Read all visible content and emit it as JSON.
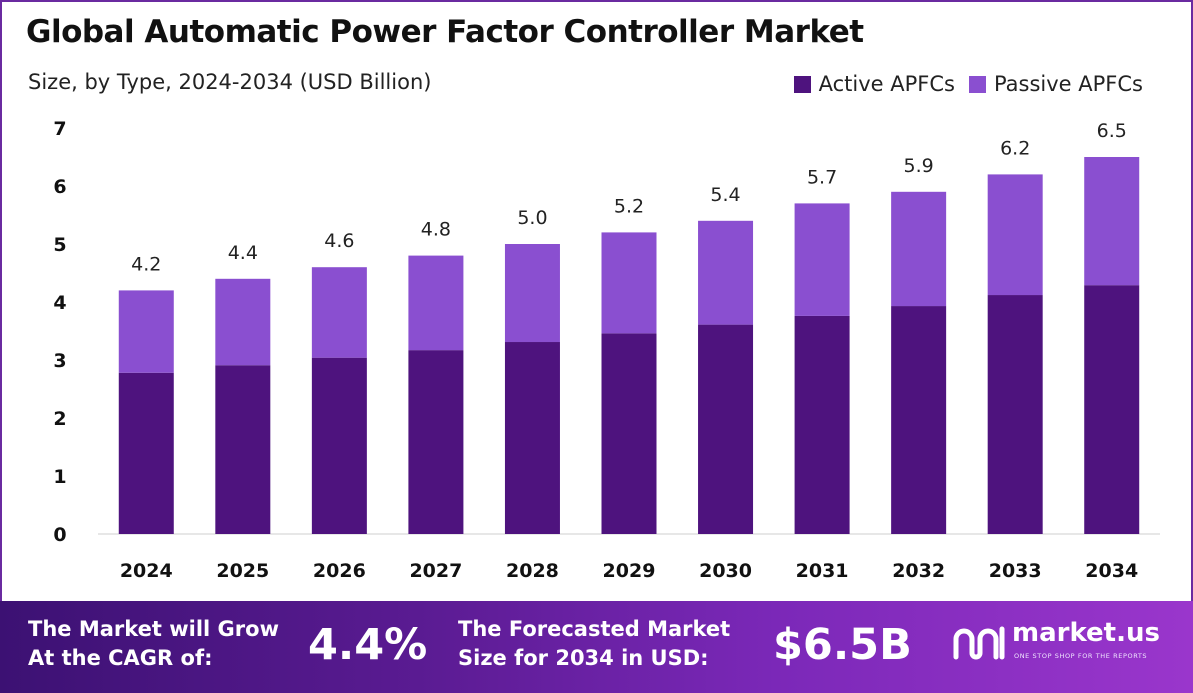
{
  "chart_data": {
    "type": "bar",
    "stacked": true,
    "title": "Global Automatic Power Factor Controller Market",
    "subtitle": "Size, by Type, 2024-2034 (USD Billion)",
    "categories": [
      "2024",
      "2025",
      "2026",
      "2027",
      "2028",
      "2029",
      "2030",
      "2031",
      "2032",
      "2033",
      "2034"
    ],
    "series": [
      {
        "name": "Active APFCs",
        "color": "#4e137e",
        "values": [
          2.78,
          2.91,
          3.04,
          3.17,
          3.31,
          3.46,
          3.61,
          3.76,
          3.93,
          4.12,
          4.29
        ]
      },
      {
        "name": "Passive APFCs",
        "color": "#8a4fd0",
        "values": [
          1.42,
          1.49,
          1.56,
          1.63,
          1.69,
          1.74,
          1.79,
          1.94,
          1.97,
          2.08,
          2.21
        ]
      }
    ],
    "totals": [
      4.2,
      4.4,
      4.6,
      4.8,
      5.0,
      5.2,
      5.4,
      5.7,
      5.9,
      6.2,
      6.5
    ],
    "total_labels": [
      "4.2",
      "4.4",
      "4.6",
      "4.8",
      "5.0",
      "5.2",
      "5.4",
      "5.7",
      "5.9",
      "6.2",
      "6.5"
    ],
    "ylim": [
      0,
      7
    ],
    "yticks": [
      "0",
      "1",
      "2",
      "3",
      "4",
      "5",
      "6",
      "7"
    ],
    "grid": false,
    "legend_position": "top-right"
  },
  "footer": {
    "cagr_line1": "The Market will Grow",
    "cagr_line2": "At the CAGR of:",
    "cagr_value": "4.4%",
    "forecast_line1": "The Forecasted Market",
    "forecast_line2": "Size for 2034 in USD:",
    "forecast_value": "$6.5B",
    "logo_name": "market.us",
    "logo_tagline": "ONE STOP SHOP FOR THE REPORTS"
  }
}
